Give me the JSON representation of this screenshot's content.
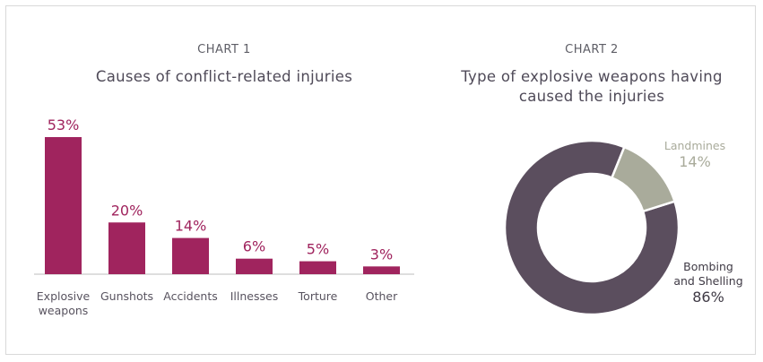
{
  "chart_data": [
    {
      "type": "bar",
      "label": "CHART 1",
      "title": "Causes of conflict-related injuries",
      "categories": [
        [
          "Explosive",
          "weapons"
        ],
        [
          "Gunshots"
        ],
        [
          "Accidents"
        ],
        [
          "Illnesses"
        ],
        [
          "Torture"
        ],
        [
          "Other"
        ]
      ],
      "values": [
        53,
        20,
        14,
        6,
        5,
        3
      ],
      "value_labels": [
        "53%",
        "20%",
        "14%",
        "6%",
        "5%",
        "3%"
      ],
      "ylim": [
        0,
        53
      ],
      "grid": false,
      "colors": {
        "bar": "#a0245e",
        "baseline": "#d4d4d4"
      }
    },
    {
      "type": "pie",
      "label": "CHART 2",
      "title": [
        "Type of explosive weapons having",
        "caused the injuries"
      ],
      "slices": [
        {
          "name": [
            "Bombing",
            "and Shelling"
          ],
          "value": 86,
          "value_label": "86%",
          "color": "#5b4e5e",
          "label_color": "#3f3a45"
        },
        {
          "name": [
            "Landmines"
          ],
          "value": 14,
          "value_label": "14%",
          "color": "#a9ab9b",
          "label_color": "#a9ab9b"
        }
      ],
      "donut": true
    }
  ]
}
